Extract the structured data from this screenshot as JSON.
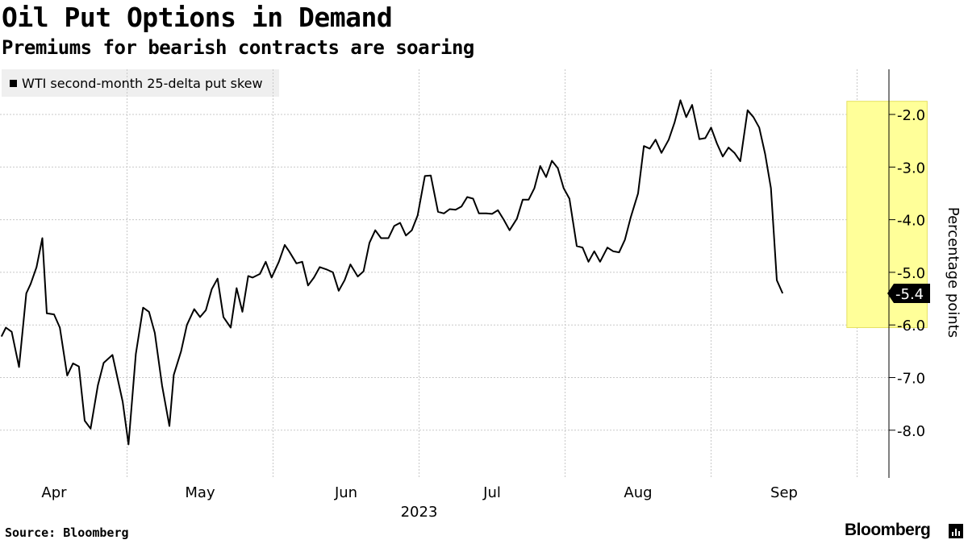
{
  "header": {
    "title": "Oil Put Options in Demand",
    "subtitle": "Premiums for bearish contracts are soaring"
  },
  "legend": {
    "label": "WTI second-month 25-delta put skew"
  },
  "footer": {
    "source": "Source: Bloomberg",
    "brand": "Bloomberg"
  },
  "colors": {
    "line": "#000000",
    "highlight": "#ffff99",
    "highlight_border": "#e6e060",
    "grid": "#c8c8c8",
    "legend_bg": "#efefef"
  },
  "chart_data": {
    "type": "line",
    "title": "Oil Put Options in Demand",
    "subtitle": "Premiums for bearish contracts are soaring",
    "ylabel": "Percentage points",
    "xlabel": "2023",
    "ylim": [
      -8.9,
      -0.8
    ],
    "yticks": [
      -2.0,
      -3.0,
      -4.0,
      -5.0,
      -6.0,
      -7.0,
      -8.0
    ],
    "ytick_labels": [
      "-2.0",
      "-3.0",
      "-4.0",
      "-5.0",
      "-6.0",
      "-7.0",
      "-8.0"
    ],
    "xlim": [
      -0.1,
      6.25
    ],
    "xticks": [
      {
        "label": "Apr",
        "x": 0.0
      },
      {
        "label": "May",
        "x": 1.0
      },
      {
        "label": "Jun",
        "x": 2.0
      },
      {
        "label": "Jul",
        "x": 3.0
      },
      {
        "label": "Aug",
        "x": 4.0
      },
      {
        "label": "Sep",
        "x": 5.0
      }
    ],
    "year_label": "2023",
    "grid_x": [
      0.5,
      1.5,
      2.5,
      3.5,
      4.5,
      5.5
    ],
    "last_value": -5.4,
    "last_value_label": "-5.4",
    "highlight": {
      "x_start": 5.43,
      "x_end": 5.98,
      "y_top": -1.75,
      "y_bottom": -6.05
    },
    "series": [
      {
        "name": "WTI second-month 25-delta put skew",
        "points": [
          [
            -0.36,
            -6.22
          ],
          [
            -0.33,
            -6.05
          ],
          [
            -0.29,
            -6.13
          ],
          [
            -0.24,
            -6.8
          ],
          [
            -0.19,
            -5.4
          ],
          [
            -0.16,
            -5.22
          ],
          [
            -0.12,
            -4.9
          ],
          [
            -0.08,
            -4.35
          ],
          [
            -0.05,
            -5.78
          ],
          [
            0.0,
            -5.8
          ],
          [
            0.04,
            -6.05
          ],
          [
            0.09,
            -6.96
          ],
          [
            0.13,
            -6.73
          ],
          [
            0.17,
            -6.79
          ],
          [
            0.21,
            -7.82
          ],
          [
            0.25,
            -7.97
          ],
          [
            0.3,
            -7.15
          ],
          [
            0.34,
            -6.72
          ],
          [
            0.4,
            -6.57
          ],
          [
            0.47,
            -7.46
          ],
          [
            0.51,
            -8.27
          ],
          [
            0.56,
            -6.55
          ],
          [
            0.61,
            -5.67
          ],
          [
            0.65,
            -5.75
          ],
          [
            0.69,
            -6.15
          ],
          [
            0.74,
            -7.15
          ],
          [
            0.79,
            -7.92
          ],
          [
            0.82,
            -6.95
          ],
          [
            0.87,
            -6.5
          ],
          [
            0.91,
            -6.0
          ],
          [
            0.96,
            -5.7
          ],
          [
            1.0,
            -5.85
          ],
          [
            1.04,
            -5.72
          ],
          [
            1.08,
            -5.32
          ],
          [
            1.12,
            -5.12
          ],
          [
            1.16,
            -5.85
          ],
          [
            1.21,
            -6.05
          ],
          [
            1.25,
            -5.3
          ],
          [
            1.29,
            -5.75
          ],
          [
            1.33,
            -5.07
          ],
          [
            1.36,
            -5.1
          ],
          [
            1.41,
            -5.03
          ],
          [
            1.45,
            -4.8
          ],
          [
            1.49,
            -5.1
          ],
          [
            1.54,
            -4.8
          ],
          [
            1.58,
            -4.48
          ],
          [
            1.61,
            -4.6
          ],
          [
            1.66,
            -4.83
          ],
          [
            1.7,
            -4.8
          ],
          [
            1.74,
            -5.25
          ],
          [
            1.78,
            -5.1
          ],
          [
            1.82,
            -4.9
          ],
          [
            1.87,
            -4.95
          ],
          [
            1.91,
            -5.0
          ],
          [
            1.95,
            -5.35
          ],
          [
            1.99,
            -5.15
          ],
          [
            2.03,
            -4.85
          ],
          [
            2.08,
            -5.08
          ],
          [
            2.12,
            -4.98
          ],
          [
            2.16,
            -4.44
          ],
          [
            2.2,
            -4.2
          ],
          [
            2.24,
            -4.35
          ],
          [
            2.29,
            -4.35
          ],
          [
            2.33,
            -4.12
          ],
          [
            2.37,
            -4.06
          ],
          [
            2.41,
            -4.3
          ],
          [
            2.45,
            -4.2
          ],
          [
            2.49,
            -3.92
          ],
          [
            2.54,
            -3.17
          ],
          [
            2.58,
            -3.16
          ],
          [
            2.63,
            -3.85
          ],
          [
            2.67,
            -3.88
          ],
          [
            2.71,
            -3.8
          ],
          [
            2.75,
            -3.81
          ],
          [
            2.79,
            -3.75
          ],
          [
            2.83,
            -3.57
          ],
          [
            2.87,
            -3.6
          ],
          [
            2.91,
            -3.88
          ],
          [
            2.96,
            -3.88
          ],
          [
            3.0,
            -3.89
          ],
          [
            3.04,
            -3.82
          ],
          [
            3.08,
            -4.0
          ],
          [
            3.12,
            -4.2
          ],
          [
            3.17,
            -3.98
          ],
          [
            3.21,
            -3.62
          ],
          [
            3.25,
            -3.62
          ],
          [
            3.29,
            -3.4
          ],
          [
            3.33,
            -2.98
          ],
          [
            3.37,
            -3.19
          ],
          [
            3.41,
            -2.88
          ],
          [
            3.45,
            -3.02
          ],
          [
            3.49,
            -3.4
          ],
          [
            3.53,
            -3.6
          ],
          [
            3.58,
            -4.5
          ],
          [
            3.62,
            -4.53
          ],
          [
            3.66,
            -4.8
          ],
          [
            3.7,
            -4.6
          ],
          [
            3.74,
            -4.8
          ],
          [
            3.79,
            -4.53
          ],
          [
            3.83,
            -4.6
          ],
          [
            3.87,
            -4.62
          ],
          [
            3.91,
            -4.38
          ],
          [
            3.95,
            -3.95
          ],
          [
            4.0,
            -3.5
          ],
          [
            4.04,
            -2.6
          ],
          [
            4.08,
            -2.65
          ],
          [
            4.12,
            -2.48
          ],
          [
            4.16,
            -2.73
          ],
          [
            4.21,
            -2.48
          ],
          [
            4.25,
            -2.15
          ],
          [
            4.29,
            -1.73
          ],
          [
            4.33,
            -2.05
          ],
          [
            4.37,
            -1.82
          ],
          [
            4.42,
            -2.47
          ],
          [
            4.46,
            -2.45
          ],
          [
            4.5,
            -2.25
          ],
          [
            4.54,
            -2.55
          ],
          [
            4.58,
            -2.8
          ],
          [
            4.62,
            -2.63
          ],
          [
            4.66,
            -2.73
          ],
          [
            4.7,
            -2.89
          ],
          [
            4.75,
            -1.92
          ],
          [
            4.79,
            -2.05
          ],
          [
            4.83,
            -2.25
          ],
          [
            4.87,
            -2.75
          ],
          [
            4.91,
            -3.4
          ],
          [
            4.95,
            -5.15
          ],
          [
            4.99,
            -5.4
          ]
        ]
      }
    ]
  }
}
